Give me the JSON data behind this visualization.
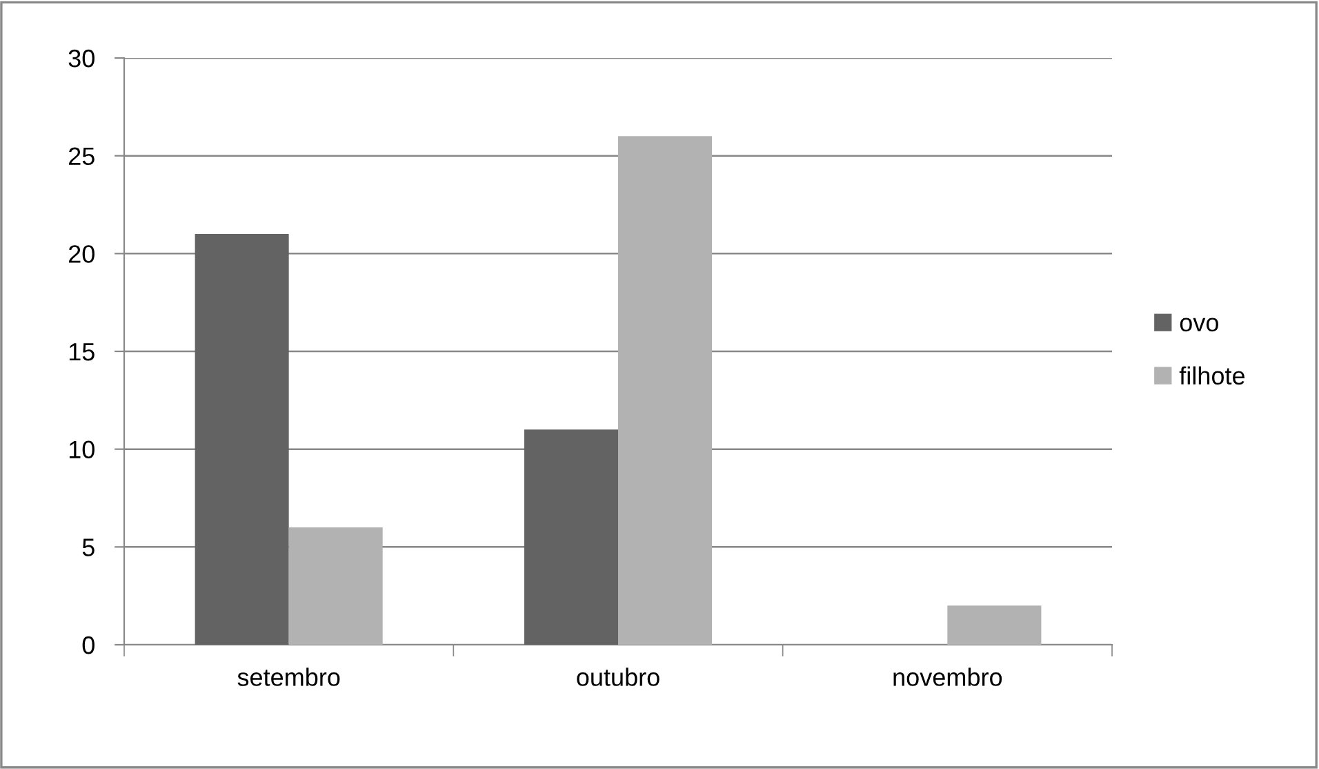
{
  "chart_data": {
    "type": "bar",
    "categories": [
      "setembro",
      "outubro",
      "novembro"
    ],
    "series": [
      {
        "name": "ovo",
        "color": "#636363",
        "values": [
          21,
          11,
          0
        ]
      },
      {
        "name": "filhote",
        "color": "#b2b2b2",
        "values": [
          6,
          26,
          2
        ]
      }
    ],
    "ylim": [
      0,
      30
    ],
    "yticks": [
      0,
      5,
      10,
      15,
      20,
      25,
      30
    ],
    "grid": "y",
    "legend": "right"
  }
}
